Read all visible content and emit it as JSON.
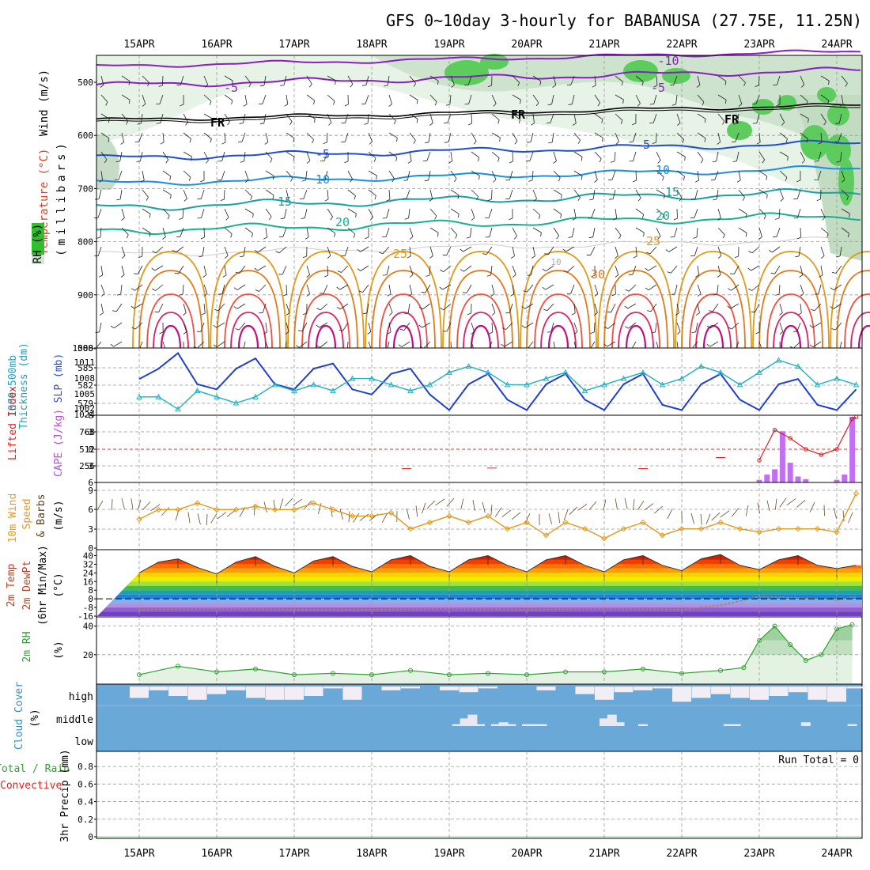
{
  "title": "GFS 0~10day 3-hourly for BABANUSA (27.75E, 11.25N)",
  "dates": [
    "15APR",
    "16APR",
    "17APR",
    "18APR",
    "19APR",
    "20APR",
    "21APR",
    "22APR",
    "23APR",
    "24APR"
  ],
  "colors": {
    "rh_green": "#3fc23f",
    "rh_light": "#e6f3e6",
    "temp_purple": "#8a1fc0",
    "temp_blue": "#1f4fd0",
    "temp_cyan": "#1aa0a0",
    "temp_orange": "#e09a1a",
    "temp_red": "#e02020",
    "sky_blue": "#6aa8d8",
    "cape_violet": "#c070f0",
    "wind_orange": "#e09a20",
    "slp_blue": "#1f3fd0",
    "thick_cyan": "#20b0c0"
  },
  "panels": {
    "upper": {
      "ylabel_wind": "Wind (m/s)",
      "ylabel_temp": "Temperature (°C)",
      "ylabel_rh": "RH (%)",
      "ylabel_unit": "(millibars)",
      "yticks": [
        "500",
        "600",
        "700",
        "800",
        "900",
        "1000"
      ],
      "contour_labels": [
        {
          "text": "-10",
          "color": "#8a1fc0"
        },
        {
          "text": "-5",
          "color": "#8a1fc0"
        },
        {
          "text": "-5",
          "color": "#8a1fc0"
        },
        {
          "text": "FR",
          "color": "#000000"
        },
        {
          "text": "FR",
          "color": "#000000"
        },
        {
          "text": "FR",
          "color": "#000000"
        },
        {
          "text": "-5",
          "color": "#1f4fd0"
        },
        {
          "text": "-5",
          "color": "#1f4fd0"
        },
        {
          "text": "10",
          "color": "#1a8fe0"
        },
        {
          "text": "10",
          "color": "#1a8fe0"
        },
        {
          "text": "15",
          "color": "#1aa0a0"
        },
        {
          "text": "15",
          "color": "#1aa0a0"
        },
        {
          "text": "20",
          "color": "#18b090"
        },
        {
          "text": "20",
          "color": "#18b090"
        },
        {
          "text": "25",
          "color": "#e09a1a"
        },
        {
          "text": "25",
          "color": "#e09a1a"
        },
        {
          "text": "30",
          "color": "#e07a1a"
        },
        {
          "text": "10",
          "color": "#aaaaaa"
        }
      ]
    },
    "thick": {
      "ylabel1": "1000-500mb",
      "ylabel2": "Thickness (dm)",
      "ylabel3": "SLP (mb)",
      "yticks_left": [
        "588",
        "585",
        "582",
        "579"
      ],
      "yticks_right": [
        "1011",
        "1008",
        "1005",
        "1002"
      ]
    },
    "cape": {
      "ylabel1": "Lifted Index",
      "ylabel2": "CAPE (J/kg)",
      "yticks_left": [
        "-6",
        "-3",
        "0",
        "3",
        "6"
      ],
      "yticks_right": [
        "1024",
        "768",
        "512",
        "256"
      ]
    },
    "wind10": {
      "ylabel1": "10m Wind",
      "ylabel2": "Speed",
      "ylabel3": "& Barbs",
      "ylabel4": "(m/s)",
      "yticks": [
        "9",
        "6",
        "3",
        "0"
      ]
    },
    "t2m": {
      "ylabel1": "2m Temp",
      "ylabel2": "2m DewPt",
      "ylabel3": "(6hr Min/Max)",
      "ylabel4": "(°C)",
      "yticks": [
        "40",
        "32",
        "24",
        "16",
        "8",
        "0",
        "-8",
        "-16"
      ]
    },
    "rh2m": {
      "ylabel1": "2m RH",
      "ylabel2": "(%)",
      "yticks": [
        "40",
        "20"
      ]
    },
    "cloud": {
      "ylabel1": "Cloud Cover",
      "ylabel2": "(%)",
      "levels": [
        "high",
        "middle",
        "low"
      ]
    },
    "precip": {
      "ylabel1": "Total / Rain",
      "ylabel2": "Convective",
      "ylabel3": "3hr Precip (mm)",
      "yticks": [
        "0.8",
        "0.6",
        "0.4",
        "0.2",
        "0"
      ],
      "run_total": "Run Total = 0"
    }
  },
  "chart_data": [
    {
      "type": "line",
      "name": "temperature-2m",
      "x_unit": "days from 15APR 00Z",
      "ylabel": "2m Temp (°C)",
      "ylim": [
        -16,
        44
      ],
      "x": [
        0,
        0.25,
        0.5,
        0.75,
        1,
        1.25,
        1.5,
        1.75,
        2,
        2.25,
        2.5,
        2.75,
        3,
        3.25,
        3.5,
        3.75,
        4,
        4.25,
        4.5,
        4.75,
        5,
        5.25,
        5.5,
        5.75,
        6,
        6.25,
        6.5,
        6.75,
        7,
        7.25,
        7.5,
        7.75,
        8,
        8.25,
        8.5,
        8.75,
        9,
        9.25
      ],
      "values": [
        24,
        34,
        37,
        29,
        23,
        34,
        39,
        30,
        24,
        35,
        39,
        30,
        25,
        36,
        40,
        30,
        25,
        36,
        40,
        31,
        25,
        36,
        40,
        31,
        25,
        36,
        40,
        31,
        26,
        37,
        41,
        31,
        27,
        36,
        40,
        31,
        28,
        31
      ]
    },
    {
      "type": "line",
      "name": "dewpoint-2m",
      "ylim": [
        -16,
        44
      ],
      "x": [
        0,
        1,
        2,
        3,
        4,
        5,
        6,
        7,
        7.5,
        8,
        8.5,
        9,
        9.25
      ],
      "values": [
        -10,
        -9,
        -10,
        -10,
        -9,
        -10,
        -9,
        -10,
        -6,
        2,
        1,
        -1,
        2
      ]
    },
    {
      "type": "line",
      "name": "rh-2m",
      "ylabel": "2m RH (%)",
      "ylim": [
        0,
        42
      ],
      "x": [
        0,
        0.5,
        1,
        1.5,
        2,
        2.5,
        3,
        3.5,
        4,
        4.5,
        5,
        5.5,
        6,
        6.5,
        7,
        7.5,
        7.8,
        8.0,
        8.2,
        8.4,
        8.6,
        8.8,
        9.0,
        9.2
      ],
      "values": [
        6,
        12,
        8,
        10,
        6,
        7,
        6,
        9,
        6,
        7,
        6,
        8,
        8,
        10,
        7,
        9,
        11,
        30,
        40,
        27,
        16,
        20,
        38,
        41
      ]
    },
    {
      "type": "line",
      "name": "wind-speed-10m",
      "ylabel": "10m Wind Speed (m/s)",
      "ylim": [
        0,
        10
      ],
      "x": [
        0,
        0.25,
        0.5,
        0.75,
        1,
        1.25,
        1.5,
        1.75,
        2,
        2.25,
        2.5,
        2.75,
        3,
        3.25,
        3.5,
        3.75,
        4,
        4.25,
        4.5,
        4.75,
        5,
        5.25,
        5.5,
        5.75,
        6,
        6.25,
        6.5,
        6.75,
        7,
        7.25,
        7.5,
        7.75,
        8,
        8.25,
        8.5,
        8.75,
        9,
        9.25
      ],
      "values": [
        4.5,
        6,
        6,
        7,
        6,
        6,
        6.5,
        6,
        6,
        7,
        6,
        5,
        5,
        5.5,
        3,
        4,
        5,
        4,
        5,
        3,
        4,
        2,
        4,
        3,
        1.5,
        3,
        4,
        2,
        3,
        3,
        4,
        3,
        2.5,
        3,
        3,
        3,
        2.5,
        8.5
      ]
    },
    {
      "type": "line",
      "name": "slp",
      "ylabel": "SLP (mb)",
      "ylim": [
        1001,
        1014
      ],
      "x": [
        0,
        0.25,
        0.5,
        0.75,
        1,
        1.25,
        1.5,
        1.75,
        2,
        2.25,
        2.5,
        2.75,
        3,
        3.25,
        3.5,
        3.75,
        4,
        4.25,
        4.5,
        4.75,
        5,
        5.25,
        5.5,
        5.75,
        6,
        6.25,
        6.5,
        6.75,
        7,
        7.25,
        7.5,
        7.75,
        8,
        8.25,
        8.5,
        8.75,
        9,
        9.25
      ],
      "values": [
        1008,
        1010,
        1013,
        1007,
        1006,
        1010,
        1012,
        1007,
        1006,
        1010,
        1011,
        1006,
        1005,
        1009,
        1010,
        1005,
        1002,
        1007,
        1009,
        1004,
        1002,
        1007,
        1009,
        1004,
        1002,
        1007,
        1009,
        1003,
        1002,
        1007,
        1009,
        1004,
        1002,
        1007,
        1008,
        1003,
        1002,
        1006
      ]
    },
    {
      "type": "line",
      "name": "thickness",
      "ylabel": "1000-500mb Thickness (dm)",
      "ylim": [
        577,
        588
      ],
      "x": [
        0,
        0.25,
        0.5,
        0.75,
        1,
        1.25,
        1.5,
        1.75,
        2,
        2.25,
        2.5,
        2.75,
        3,
        3.25,
        3.5,
        3.75,
        4,
        4.25,
        4.5,
        4.75,
        5,
        5.25,
        5.5,
        5.75,
        6,
        6.25,
        6.5,
        6.75,
        7,
        7.25,
        7.5,
        7.75,
        8,
        8.25,
        8.5,
        8.75,
        9,
        9.25
      ],
      "values": [
        580,
        580,
        578,
        581,
        580,
        579,
        580,
        582,
        581,
        582,
        581,
        583,
        583,
        582,
        581,
        582,
        584,
        585,
        584,
        582,
        582,
        583,
        584,
        581,
        582,
        583,
        584,
        582,
        583,
        585,
        584,
        582,
        584,
        586,
        585,
        582,
        583,
        582
      ]
    },
    {
      "type": "bar",
      "name": "cape",
      "ylabel": "CAPE (J/kg)",
      "ylim": [
        0,
        1024
      ],
      "x": [
        8.0,
        8.1,
        8.2,
        8.3,
        8.4,
        8.5,
        8.6,
        9.0,
        9.1,
        9.2
      ],
      "values": [
        40,
        120,
        200,
        780,
        300,
        90,
        50,
        40,
        120,
        1000
      ]
    },
    {
      "type": "line",
      "name": "lifted-index",
      "ylabel": "Lifted Index",
      "ylim": [
        6,
        -6
      ],
      "x": [
        8.0,
        8.2,
        8.4,
        8.6,
        8.8,
        9.0,
        9.2,
        9.25
      ],
      "values": [
        2,
        -3.5,
        -2,
        0,
        1,
        0,
        -5.5,
        -5.8
      ]
    },
    {
      "type": "bar",
      "name": "cloud-cover-high",
      "ylabel": "high cloud (%)",
      "ylim": [
        0,
        100
      ],
      "x": [
        0,
        0.25,
        0.5,
        0.75,
        1,
        1.25,
        1.5,
        1.75,
        2,
        2.25,
        2.5,
        2.75,
        3,
        3.25,
        3.5,
        3.75,
        4,
        4.25,
        4.5,
        4.75,
        5,
        5.25,
        5.5,
        5.75,
        6,
        6.25,
        6.5,
        6.75,
        7,
        7.25,
        7.5,
        7.75,
        8,
        8.25,
        8.5,
        8.75,
        9,
        9.25
      ],
      "values": [
        40,
        80,
        50,
        30,
        60,
        80,
        40,
        30,
        30,
        50,
        90,
        30,
        100,
        80,
        90,
        100,
        80,
        70,
        90,
        100,
        100,
        80,
        100,
        60,
        30,
        70,
        80,
        90,
        20,
        40,
        60,
        40,
        30,
        50,
        70,
        30,
        20,
        90
      ]
    },
    {
      "type": "bar",
      "name": "cloud-cover-middle",
      "ylabel": "middle cloud (%)",
      "ylim": [
        0,
        100
      ],
      "x": [
        4.1,
        4.2,
        4.3,
        4.4,
        4.6,
        4.7,
        4.8,
        5.0,
        5.1,
        5.2,
        6.0,
        6.1,
        6.2,
        6.5,
        7.6,
        7.7,
        8.6,
        9.2
      ],
      "values": [
        10,
        40,
        60,
        10,
        10,
        20,
        10,
        10,
        10,
        10,
        40,
        60,
        20,
        10,
        10,
        10,
        20,
        10
      ]
    },
    {
      "type": "line",
      "name": "precip-3hr",
      "ylabel": "3hr Precip (mm)",
      "ylim": [
        0,
        1
      ],
      "x": [
        0,
        9.25
      ],
      "values": [
        0,
        0
      ]
    }
  ]
}
